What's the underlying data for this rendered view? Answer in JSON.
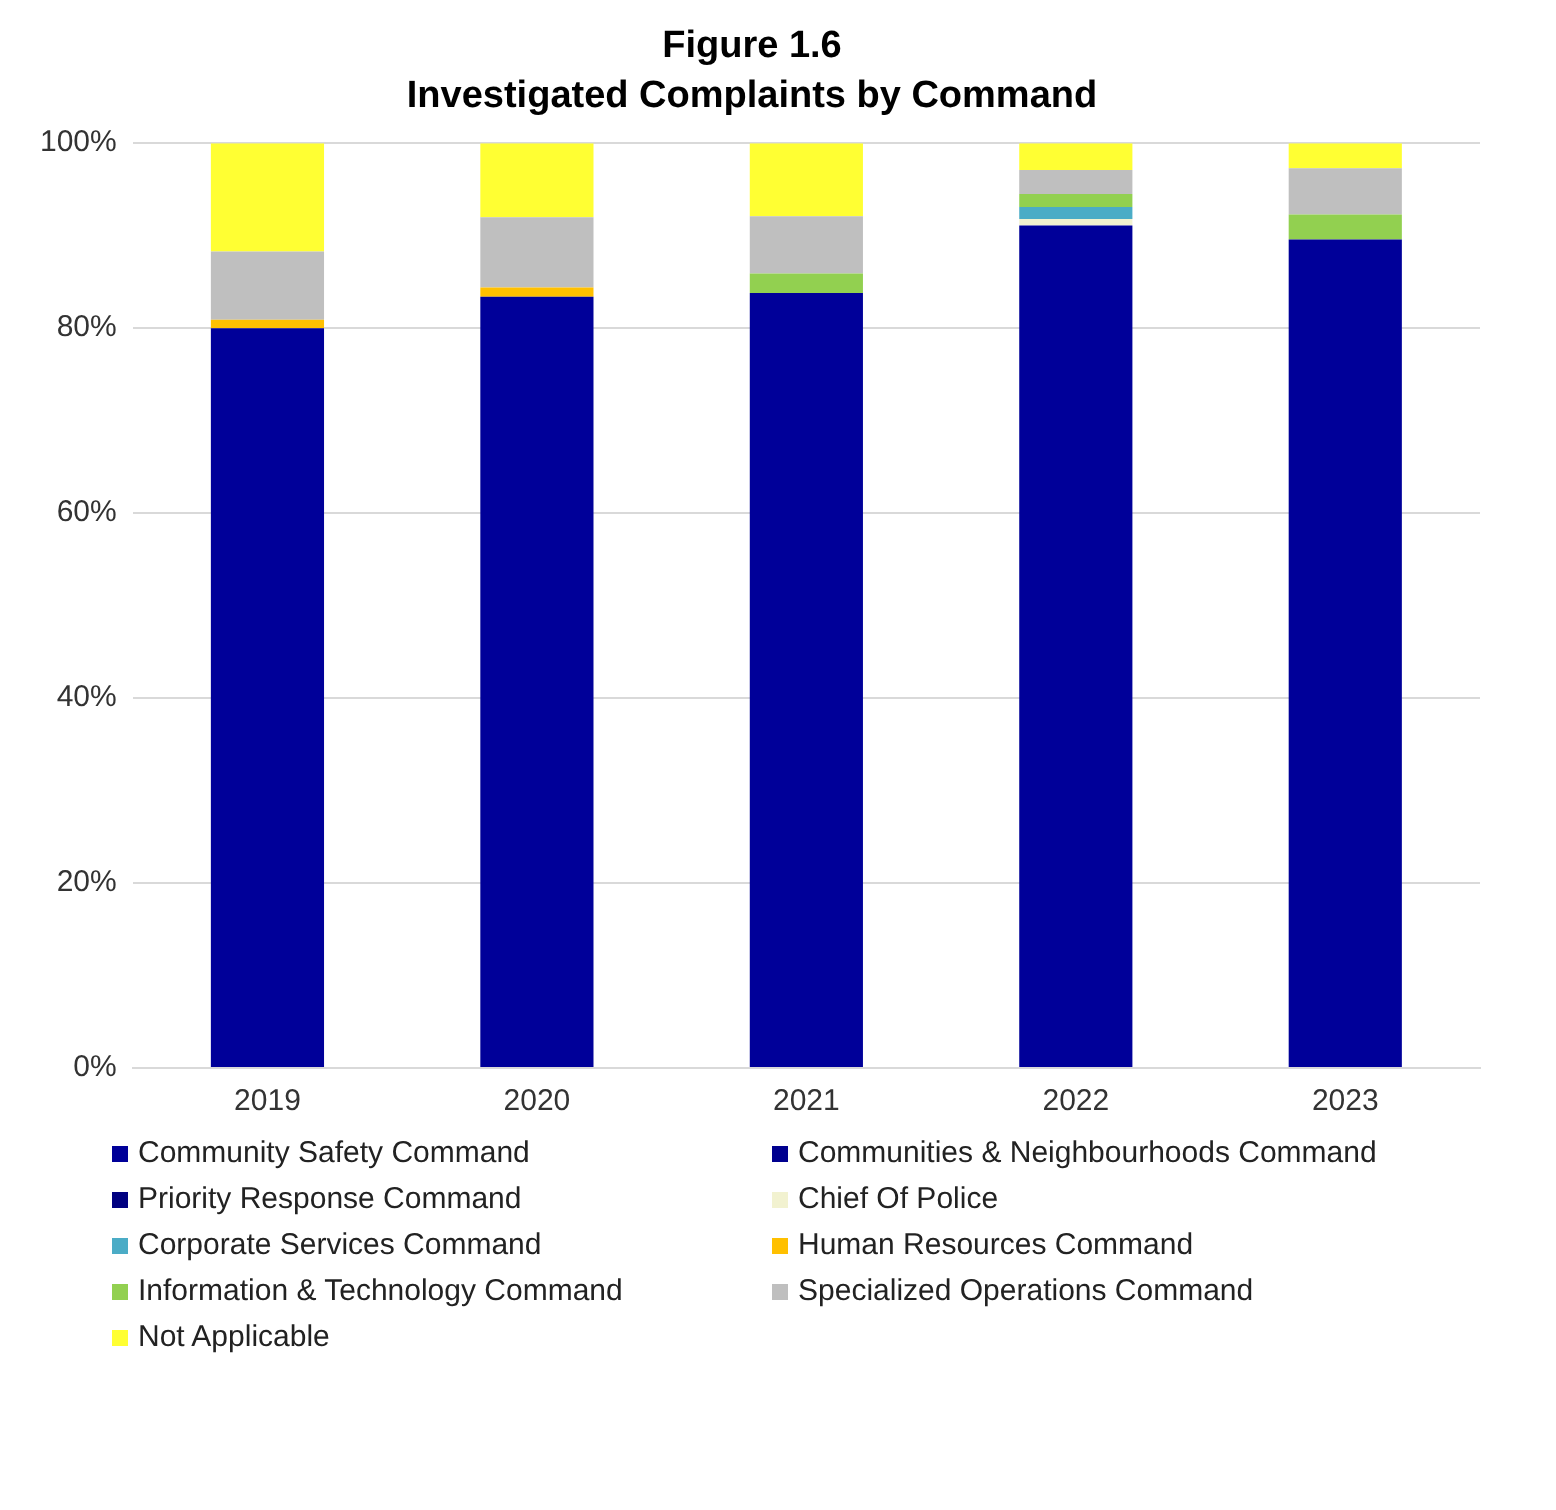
{
  "chart_data": {
    "type": "bar",
    "title": "Figure 1.6",
    "subtitle": "Investigated Complaints by Command",
    "stacked": true,
    "categories": [
      "2019",
      "2020",
      "2021",
      "2022",
      "2023"
    ],
    "series": [
      {
        "name": "Community Safety Command",
        "color": "#000099",
        "values": [
          80,
          83.4,
          83.8,
          91.1,
          89.6
        ]
      },
      {
        "name": "Communities & Neighbourhoods Command",
        "color": "#00008f",
        "values": [
          0,
          0,
          0,
          0,
          0
        ]
      },
      {
        "name": "Priority Response Command",
        "color": "#000080",
        "values": [
          0,
          0,
          0,
          0,
          0
        ]
      },
      {
        "name": "Chief Of Police",
        "color": "#f2f2d0",
        "values": [
          0,
          0,
          0,
          0.7,
          0
        ]
      },
      {
        "name": "Corporate Services Command",
        "color": "#4bacc6",
        "values": [
          0,
          0,
          0,
          1.3,
          0
        ]
      },
      {
        "name": "Human Resources Command",
        "color": "#ffc000",
        "values": [
          0.9,
          1,
          0,
          0,
          0
        ]
      },
      {
        "name": "Information & Technology Command",
        "color": "#92d050",
        "values": [
          0,
          0,
          2.1,
          1.4,
          2.7
        ]
      },
      {
        "name": "Specialized Operations Command",
        "color": "#bfbfbf",
        "values": [
          7.4,
          7.6,
          6.2,
          2.6,
          5
        ]
      },
      {
        "name": "Not Applicable",
        "color": "#ffff33",
        "values": [
          11.7,
          8,
          7.9,
          2.9,
          2.7
        ]
      }
    ],
    "ylim": [
      0,
      100
    ],
    "yticks": [
      {
        "value": 0,
        "label": "0%"
      },
      {
        "value": 20,
        "label": "20%"
      },
      {
        "value": 40,
        "label": "40%"
      },
      {
        "value": 60,
        "label": "60%"
      },
      {
        "value": 80,
        "label": "80%"
      },
      {
        "value": 100,
        "label": "100%"
      }
    ],
    "grid": "y",
    "legend": "bottom"
  }
}
